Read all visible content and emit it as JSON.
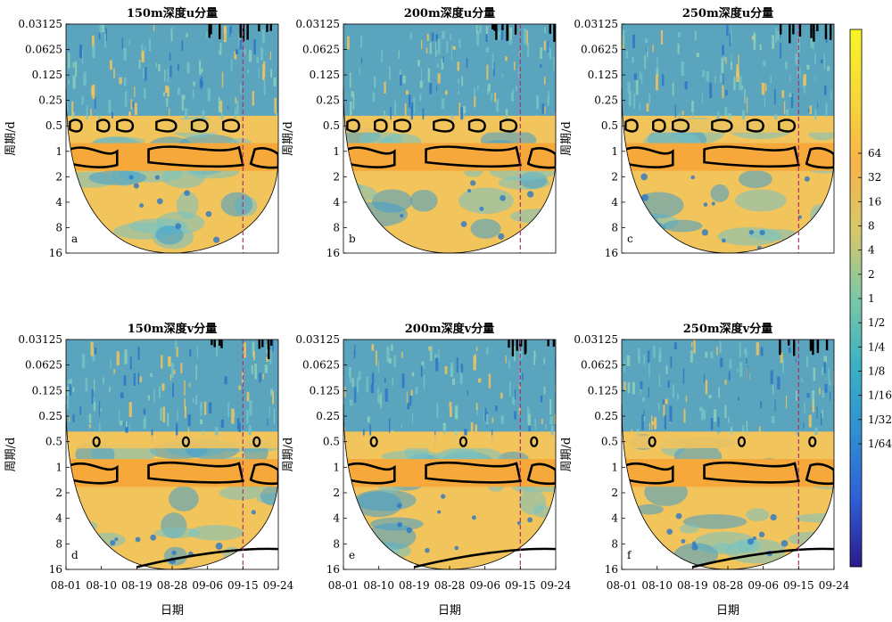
{
  "chart_data": {
    "type": "heatmap",
    "subtype": "wavelet power spectrum",
    "ylabel": "周期/d",
    "xlabel": "日期",
    "y_scale": "log2",
    "y_direction": "period increases downward",
    "ylim": [
      0.03125,
      16
    ],
    "y_ticks": [
      "0.03125",
      "0.0625",
      "0.125",
      "0.25",
      "0.5",
      "1",
      "2",
      "4",
      "8",
      "16"
    ],
    "y_tick_values": [
      0.03125,
      0.0625,
      0.125,
      0.25,
      0.5,
      1,
      2,
      4,
      8,
      16
    ],
    "x_ticks": [
      "08-01",
      "08-10",
      "08-19",
      "08-28",
      "09-06",
      "09-15",
      "09-24"
    ],
    "x_tick_days": [
      0,
      9,
      18,
      27,
      36,
      45,
      54
    ],
    "xlim_days": [
      0,
      54
    ],
    "colorbar": {
      "labels": [
        "64",
        "32",
        "16",
        "8",
        "4",
        "2",
        "1",
        "1/2",
        "1/4",
        "1/8",
        "1/16",
        "1/32",
        "1/64"
      ],
      "values": [
        64,
        32,
        16,
        8,
        4,
        2,
        1,
        0.5,
        0.25,
        0.125,
        0.0625,
        0.03125,
        0.015625
      ],
      "colors": [
        "#2b1a8c",
        "#2f5fd6",
        "#2f8fd2",
        "#3bb1c4",
        "#7cc8a6",
        "#d6c96a",
        "#f7b34a",
        "#f7d83a",
        "#f8f526"
      ]
    },
    "colors": {
      "background": "#f2c45c",
      "high_power": "#f6a93a",
      "low_power": "#3f9fcf",
      "very_low": "#2b77c6",
      "mid": "#74c3c6",
      "contour": "#000000",
      "marker_line": "#b0306a"
    },
    "marker_line_date": "09-15",
    "marker_line_style": "dashed",
    "significance_contours": "thick black lines",
    "cone_of_influence": "curved boundary; area below it is masked white",
    "panels": [
      {
        "label": "a",
        "title": "150m深度u分量",
        "contour_bands": [
          [
            0.42,
            0.6
          ],
          [
            0.8,
            1.7
          ]
        ]
      },
      {
        "label": "b",
        "title": "200m深度u分量",
        "contour_bands": [
          [
            0.42,
            0.6
          ],
          [
            0.8,
            1.7
          ]
        ]
      },
      {
        "label": "c",
        "title": "250m深度u分量",
        "contour_bands": [
          [
            0.42,
            0.6
          ],
          [
            0.8,
            1.7
          ]
        ]
      },
      {
        "label": "d",
        "title": "150m深度v分量",
        "contour_bands": [
          [
            0.42,
            0.6
          ],
          [
            0.8,
            1.7
          ]
        ]
      },
      {
        "label": "e",
        "title": "200m深度v分量",
        "contour_bands": [
          [
            0.42,
            0.6
          ],
          [
            0.8,
            1.7
          ]
        ]
      },
      {
        "label": "f",
        "title": "250m深度v分量",
        "contour_bands": [
          [
            0.42,
            0.6
          ],
          [
            0.8,
            1.7
          ]
        ]
      }
    ]
  }
}
